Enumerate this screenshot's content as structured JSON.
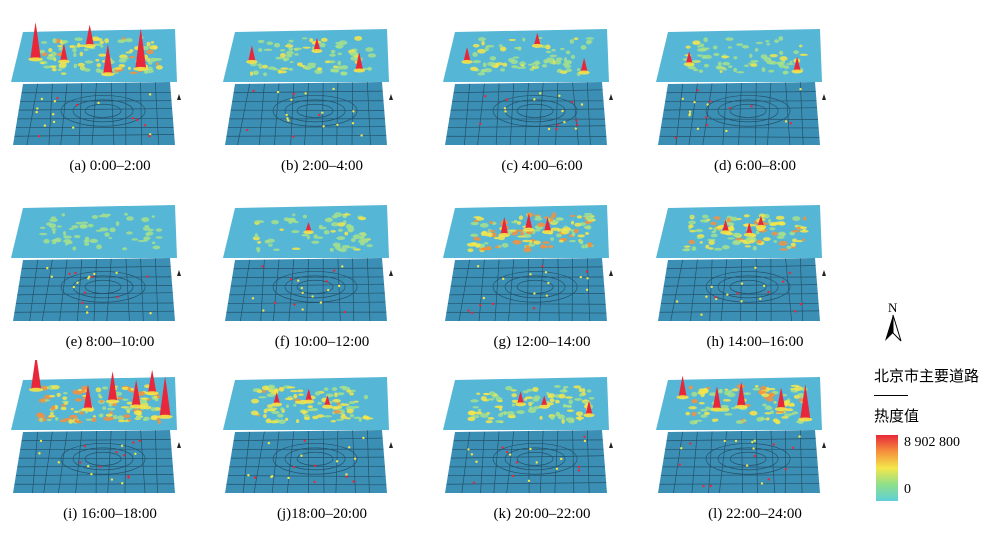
{
  "panels": [
    {
      "caption": "(a) 0:00–2:00",
      "intensity": 0.55,
      "peaks": [
        [
          0.12,
          0.55,
          0.9
        ],
        [
          0.58,
          0.85,
          0.7
        ],
        [
          0.78,
          0.75,
          1.0
        ],
        [
          0.3,
          0.6,
          0.35
        ],
        [
          0.45,
          0.3,
          0.45
        ]
      ]
    },
    {
      "caption": "(b) 2:00–4:00",
      "intensity": 0.35,
      "peaks": [
        [
          0.15,
          0.6,
          0.3
        ],
        [
          0.55,
          0.4,
          0.2
        ],
        [
          0.82,
          0.78,
          0.35
        ]
      ]
    },
    {
      "caption": "(c) 4:00–6:00",
      "intensity": 0.3,
      "peaks": [
        [
          0.12,
          0.6,
          0.25
        ],
        [
          0.55,
          0.3,
          0.2
        ],
        [
          0.85,
          0.82,
          0.25
        ]
      ]
    },
    {
      "caption": "(d) 6:00–8:00",
      "intensity": 0.28,
      "peaks": [
        [
          0.18,
          0.65,
          0.2
        ],
        [
          0.85,
          0.8,
          0.25
        ]
      ]
    },
    {
      "caption": "(e) 8:00–10:00",
      "intensity": 0.2,
      "peaks": []
    },
    {
      "caption": "(f) 10:00–12:00",
      "intensity": 0.3,
      "peaks": [
        [
          0.5,
          0.5,
          0.12
        ]
      ]
    },
    {
      "caption": "(g) 12:00–14:00",
      "intensity": 0.75,
      "peaks": [
        [
          0.35,
          0.55,
          0.35
        ],
        [
          0.5,
          0.45,
          0.3
        ],
        [
          0.62,
          0.5,
          0.25
        ]
      ]
    },
    {
      "caption": "(h) 14:00–16:00",
      "intensity": 0.6,
      "peaks": [
        [
          0.4,
          0.5,
          0.2
        ],
        [
          0.55,
          0.55,
          0.18
        ],
        [
          0.62,
          0.4,
          0.15
        ]
      ]
    },
    {
      "caption": "(i)  16:00–18:00",
      "intensity": 0.8,
      "peaks": [
        [
          0.1,
          0.2,
          0.85
        ],
        [
          0.45,
          0.6,
          0.55
        ],
        [
          0.6,
          0.45,
          0.7
        ],
        [
          0.75,
          0.55,
          0.6
        ],
        [
          0.93,
          0.75,
          1.0
        ],
        [
          0.85,
          0.3,
          0.5
        ]
      ]
    },
    {
      "caption": "(j)18:00–20:00",
      "intensity": 0.55,
      "peaks": [
        [
          0.3,
          0.5,
          0.18
        ],
        [
          0.5,
          0.45,
          0.2
        ],
        [
          0.62,
          0.55,
          0.15
        ]
      ]
    },
    {
      "caption": "(k) 20:00–22:00",
      "intensity": 0.5,
      "peaks": [
        [
          0.45,
          0.5,
          0.2
        ],
        [
          0.6,
          0.55,
          0.15
        ],
        [
          0.88,
          0.72,
          0.25
        ]
      ]
    },
    {
      "caption": "(l) 22:00–24:00",
      "intensity": 0.6,
      "peaks": [
        [
          0.12,
          0.35,
          0.45
        ],
        [
          0.35,
          0.6,
          0.5
        ],
        [
          0.5,
          0.55,
          0.55
        ],
        [
          0.75,
          0.6,
          0.45
        ],
        [
          0.9,
          0.8,
          0.85
        ]
      ]
    }
  ],
  "legend": {
    "north": "N",
    "road_title": "北京市主要道路",
    "heat_title": "热度值",
    "max_value": "8 902 800",
    "min_value": "0",
    "colors": [
      "#e8283a",
      "#f5903c",
      "#f4e64a",
      "#8ee08a",
      "#5fd0d8"
    ]
  },
  "colors": {
    "surface": "#56b6d6",
    "map": "#3b8fb5",
    "road": "#1c3d52"
  }
}
